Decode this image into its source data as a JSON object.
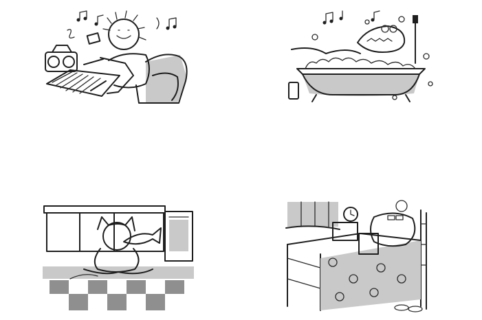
{
  "page": {
    "background": "#ffffff"
  },
  "panels": [
    {
      "id": "lion",
      "icon": "lion-listening-music-illustration"
    },
    {
      "id": "croc",
      "icon": "crocodile-bubble-bath-illustration"
    },
    {
      "id": "cat",
      "icon": "cat-eating-fish-illustration"
    },
    {
      "id": "hippo",
      "icon": "hippo-reading-in-bed-illustration"
    }
  ],
  "colors": {
    "ink": "#1e1e1e",
    "wash": "#c9c9c9",
    "wash_dark": "#8f8f8f"
  }
}
